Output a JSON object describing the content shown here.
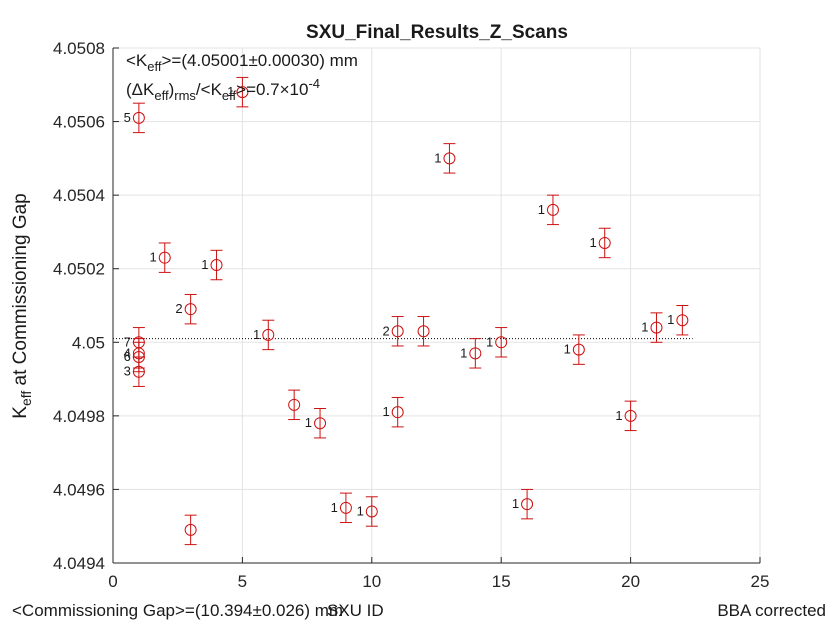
{
  "chart_data": {
    "type": "scatter",
    "title": "SXU_Final_Results_Z_Scans",
    "xlabel": "SXU ID",
    "ylabel": "K_eff at Commissioning Gap",
    "xlim": [
      0,
      25
    ],
    "ylim": [
      4.0494,
      4.0508
    ],
    "xticks": [
      0,
      5,
      10,
      15,
      20,
      25
    ],
    "yticks": [
      4.0494,
      4.0496,
      4.0498,
      4.05,
      4.0502,
      4.0504,
      4.0506,
      4.0508
    ],
    "ytick_labels": [
      "4.0494",
      "4.0496",
      "4.0498",
      "4.05",
      "4.0502",
      "4.0504",
      "4.0506",
      "4.0508"
    ],
    "grid": true,
    "mean_line": 4.05001,
    "colors": {
      "marker": "#cc1111",
      "mean_line": "#000000",
      "grid": "#e3e3e3"
    },
    "annotations": {
      "line1": {
        "pre": "<K",
        "sub": "eff",
        "post": ">=(4.05001±0.00030) mm"
      },
      "line2": {
        "a": "(ΔK",
        "sub1": "eff",
        "b": ")",
        "sub2": "rms",
        "c": "/<K",
        "sub3": "eff",
        "d": ">=0.7×10",
        "sup": "-4"
      }
    },
    "points": [
      {
        "x": 1,
        "y": 4.05061,
        "err": 4e-05,
        "label": "5"
      },
      {
        "x": 1,
        "y": 4.05,
        "err": 4e-05,
        "label": "7"
      },
      {
        "x": 1,
        "y": 4.04997,
        "err": 4e-05,
        "label": "4"
      },
      {
        "x": 1,
        "y": 4.04996,
        "err": 4e-05,
        "label": "6"
      },
      {
        "x": 1,
        "y": 4.04992,
        "err": 4e-05,
        "label": "3"
      },
      {
        "x": 2,
        "y": 4.05023,
        "err": 4e-05,
        "label": "1"
      },
      {
        "x": 3,
        "y": 4.05009,
        "err": 4e-05,
        "label": "2"
      },
      {
        "x": 3,
        "y": 4.04949,
        "err": 4e-05,
        "label": ""
      },
      {
        "x": 4,
        "y": 4.05021,
        "err": 4e-05,
        "label": "1"
      },
      {
        "x": 5,
        "y": 4.05068,
        "err": 4e-05,
        "label": "1"
      },
      {
        "x": 6,
        "y": 4.05002,
        "err": 4e-05,
        "label": "1"
      },
      {
        "x": 7,
        "y": 4.04983,
        "err": 4e-05,
        "label": ""
      },
      {
        "x": 8,
        "y": 4.04978,
        "err": 4e-05,
        "label": "1"
      },
      {
        "x": 9,
        "y": 4.04955,
        "err": 4e-05,
        "label": "1"
      },
      {
        "x": 10,
        "y": 4.04954,
        "err": 4e-05,
        "label": "1"
      },
      {
        "x": 11,
        "y": 4.05003,
        "err": 4e-05,
        "label": "2"
      },
      {
        "x": 11,
        "y": 4.04981,
        "err": 4e-05,
        "label": "1"
      },
      {
        "x": 12,
        "y": 4.05003,
        "err": 4e-05,
        "label": ""
      },
      {
        "x": 13,
        "y": 4.0505,
        "err": 4e-05,
        "label": "1"
      },
      {
        "x": 14,
        "y": 4.04997,
        "err": 4e-05,
        "label": "1"
      },
      {
        "x": 15,
        "y": 4.05,
        "err": 4e-05,
        "label": "1"
      },
      {
        "x": 16,
        "y": 4.04956,
        "err": 4e-05,
        "label": "1"
      },
      {
        "x": 17,
        "y": 4.05036,
        "err": 4e-05,
        "label": "1"
      },
      {
        "x": 18,
        "y": 4.04998,
        "err": 4e-05,
        "label": "1"
      },
      {
        "x": 19,
        "y": 4.05027,
        "err": 4e-05,
        "label": "1"
      },
      {
        "x": 20,
        "y": 4.0498,
        "err": 4e-05,
        "label": "1"
      },
      {
        "x": 21,
        "y": 4.05004,
        "err": 4e-05,
        "label": "1"
      },
      {
        "x": 22,
        "y": 4.05006,
        "err": 4e-05,
        "label": "1"
      }
    ]
  },
  "footer": {
    "left": "<Commissioning Gap>=(10.394±0.026) mm",
    "right": "BBA corrected"
  }
}
